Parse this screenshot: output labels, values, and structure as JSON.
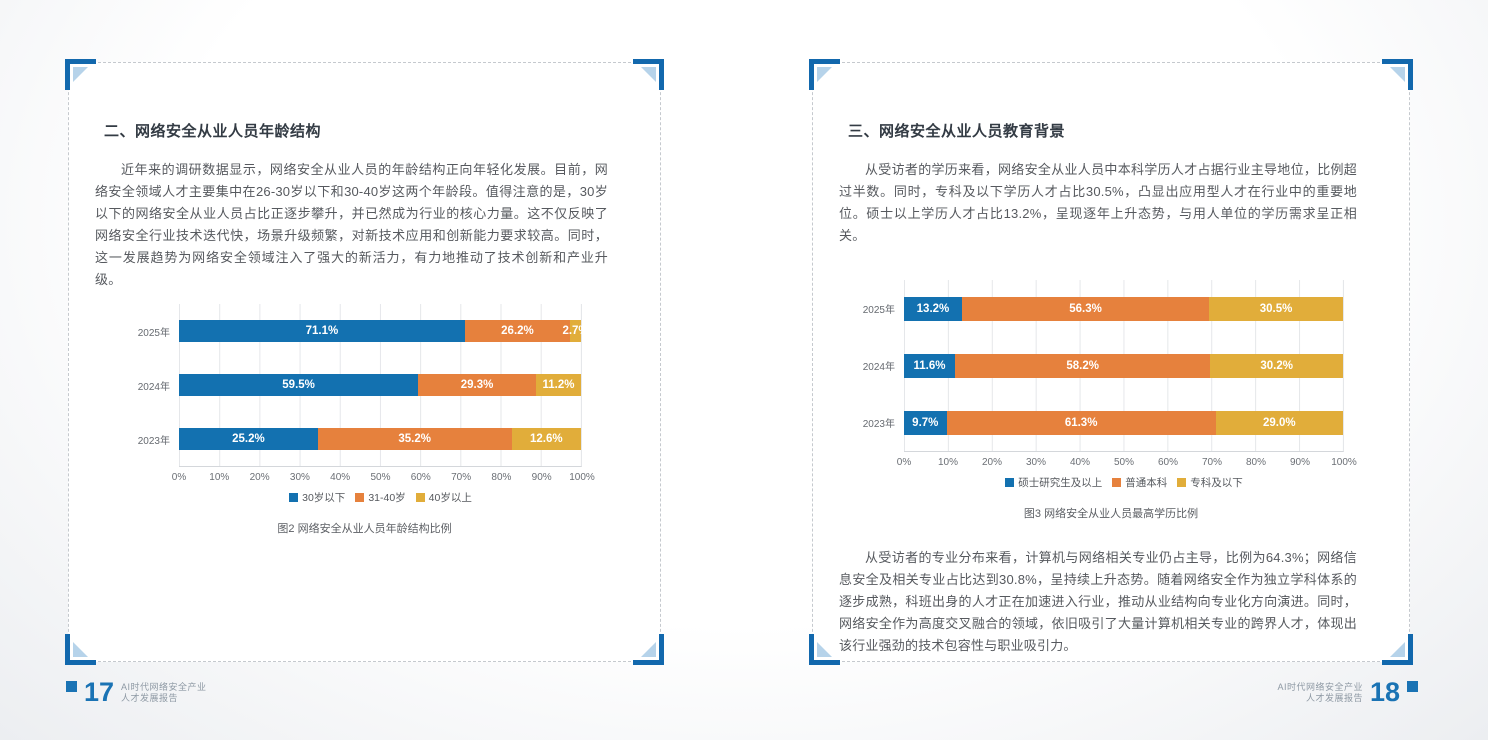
{
  "pages": [
    {
      "title": "二、网络安全从业人员年龄结构",
      "paragraphs": [
        "近年来的调研数据显示，网络安全从业人员的年龄结构正向年轻化发展。目前，网络安全领域人才主要集中在26-30岁以下和30-40岁这两个年龄段。值得注意的是，30岁以下的网络安全从业人员占比正逐步攀升，并已然成为行业的核心力量。这不仅反映了网络安全行业技术迭代快，场景升级频繁，对新技术应用和创新能力要求较高。同时，这一发展趋势为网络安全领域注入了强大的新活力，有力地推动了技术创新和产业升级。"
      ],
      "figure_caption": "图2 网络安全从业人员年龄结构比例"
    },
    {
      "title": "三、网络安全从业人员教育背景",
      "paragraphs_before": [
        "从受访者的学历来看，网络安全从业人员中本科学历人才占据行业主导地位，比例超过半数。同时，专科及以下学历人才占比30.5%，凸显出应用型人才在行业中的重要地位。硕士以上学历人才占比13.2%，呈现逐年上升态势，与用人单位的学历需求呈正相关。"
      ],
      "figure_caption": "图3 网络安全从业人员最高学历比例",
      "paragraphs_after": [
        "从受访者的专业分布来看，计算机与网络相关专业仍占主导，比例为64.3%；网络信息安全及相关专业占比达到30.8%，呈持续上升态势。随着网络安全作为独立学科体系的逐步成熟，科班出身的人才正在加速进入行业，推动从业结构向专业化方向演进。同时，网络安全作为高度交叉融合的领域，依旧吸引了大量计算机相关专业的跨界人才，体现出该行业强劲的技术包容性与职业吸引力。"
      ]
    }
  ],
  "chart_data": [
    {
      "type": "bar",
      "orientation": "horizontal",
      "stacked": true,
      "normalize_rows": true,
      "title": "图2 网络安全从业人员年龄结构比例",
      "categories": [
        "2025年",
        "2024年",
        "2023年"
      ],
      "series": [
        {
          "name": "30岁以下",
          "color": "#1371b0",
          "values": [
            71.1,
            59.5,
            25.2
          ]
        },
        {
          "name": "31-40岁",
          "color": "#e6813d",
          "values": [
            26.2,
            29.3,
            35.2
          ]
        },
        {
          "name": "40岁以上",
          "color": "#e1ad3a",
          "values": [
            2.7,
            11.2,
            12.6
          ]
        }
      ],
      "x_ticks": [
        "0%",
        "10%",
        "20%",
        "30%",
        "40%",
        "50%",
        "60%",
        "70%",
        "80%",
        "90%",
        "100%"
      ],
      "xlim": [
        0,
        100
      ],
      "grid": true,
      "legend_position": "bottom"
    },
    {
      "type": "bar",
      "orientation": "horizontal",
      "stacked": true,
      "normalize_rows": true,
      "title": "图3 网络安全从业人员最高学历比例",
      "categories": [
        "2025年",
        "2024年",
        "2023年"
      ],
      "series": [
        {
          "name": "硕士研究生及以上",
          "color": "#1371b0",
          "values": [
            13.2,
            11.6,
            9.7
          ]
        },
        {
          "name": "普通本科",
          "color": "#e6813d",
          "values": [
            56.3,
            58.2,
            61.3
          ]
        },
        {
          "name": "专科及以下",
          "color": "#e1ad3a",
          "values": [
            30.5,
            30.2,
            29.0
          ]
        }
      ],
      "x_ticks": [
        "0%",
        "10%",
        "20%",
        "30%",
        "40%",
        "50%",
        "60%",
        "70%",
        "80%",
        "90%",
        "100%"
      ],
      "xlim": [
        0,
        100
      ],
      "grid": true,
      "legend_position": "bottom"
    }
  ],
  "footer": {
    "left": {
      "page_number": "17",
      "title_line1": "AI时代网络安全产业",
      "title_line2": "人才发展报告"
    },
    "right": {
      "page_number": "18",
      "title_line1": "AI时代网络安全产业",
      "title_line2": "人才发展报告"
    }
  },
  "colors": {
    "accent_blue": "#1371b0",
    "orange": "#e6813d",
    "yellow": "#e1ad3a",
    "bracket_blue": "#1268ad",
    "grid": "#e5e7ea"
  }
}
